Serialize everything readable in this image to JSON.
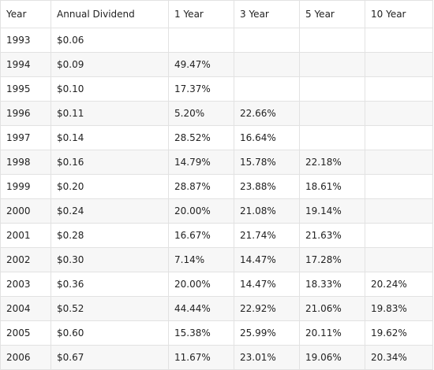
{
  "table": {
    "columns": [
      "Year",
      "Annual Dividend",
      "1 Year",
      "3 Year",
      "5 Year",
      "10 Year"
    ],
    "rows": [
      [
        "1993",
        "$0.06",
        "",
        "",
        "",
        ""
      ],
      [
        "1994",
        "$0.09",
        "49.47%",
        "",
        "",
        ""
      ],
      [
        "1995",
        "$0.10",
        "17.37%",
        "",
        "",
        ""
      ],
      [
        "1996",
        "$0.11",
        "5.20%",
        "22.66%",
        "",
        ""
      ],
      [
        "1997",
        "$0.14",
        "28.52%",
        "16.64%",
        "",
        ""
      ],
      [
        "1998",
        "$0.16",
        "14.79%",
        "15.78%",
        "22.18%",
        ""
      ],
      [
        "1999",
        "$0.20",
        "28.87%",
        "23.88%",
        "18.61%",
        ""
      ],
      [
        "2000",
        "$0.24",
        "20.00%",
        "21.08%",
        "19.14%",
        ""
      ],
      [
        "2001",
        "$0.28",
        "16.67%",
        "21.74%",
        "21.63%",
        ""
      ],
      [
        "2002",
        "$0.30",
        "7.14%",
        "14.47%",
        "17.28%",
        ""
      ],
      [
        "2003",
        "$0.36",
        "20.00%",
        "14.47%",
        "18.33%",
        "20.24%"
      ],
      [
        "2004",
        "$0.52",
        "44.44%",
        "22.92%",
        "21.06%",
        "19.83%"
      ],
      [
        "2005",
        "$0.60",
        "15.38%",
        "25.99%",
        "20.11%",
        "19.62%"
      ],
      [
        "2006",
        "$0.67",
        "11.67%",
        "23.01%",
        "19.06%",
        "20.34%"
      ]
    ]
  }
}
